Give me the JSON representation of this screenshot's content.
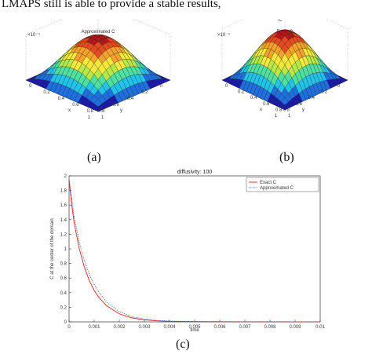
{
  "document": {
    "top_line": "LMAPS still is able to provide a stable results,"
  },
  "panels": {
    "a": {
      "label": "(a)",
      "title": "Approximated C"
    },
    "b": {
      "label": "(b)",
      "title": "Exact C"
    },
    "c": {
      "label": "(c)"
    }
  },
  "surface": {
    "zscale": "×10⁻⁴",
    "axis_ticks_x": [
      "0",
      "0.2",
      "0.4",
      "0.6",
      "0.8",
      "1"
    ],
    "axis_ticks_y": [
      "0",
      "0.2",
      "0.4",
      "0.6",
      "0.8",
      "1"
    ],
    "axis_x": "x",
    "axis_y": "y",
    "axis_z": "C",
    "colors": [
      "#1a1aa8",
      "#1e6fe0",
      "#22c3e8",
      "#4fe0a0",
      "#b7e847",
      "#f5e83a",
      "#f6a12b",
      "#e84a1f",
      "#b5161a"
    ]
  },
  "chart_data": {
    "type": "line",
    "title": "diffusivity: 100",
    "xlabel": "time",
    "ylabel": "C at the center of the domain",
    "xlim": [
      0,
      0.01
    ],
    "ylim": [
      0,
      2
    ],
    "x_ticks": [
      "0",
      "0.001",
      "0.002",
      "0.003",
      "0.004",
      "0.005",
      "0.006",
      "0.007",
      "0.008",
      "0.009",
      "0.01"
    ],
    "y_ticks": [
      "0",
      "0.2",
      "0.4",
      "0.6",
      "0.8",
      "1",
      "1.2",
      "1.4",
      "1.6",
      "1.8",
      "2"
    ],
    "legend_position": "top-right",
    "series": [
      {
        "name": "Exact C",
        "color": "#e02020",
        "style": "solid",
        "x": [
          0,
          0.0001,
          0.0002,
          0.0004,
          0.0006,
          0.0008,
          0.001,
          0.0012,
          0.0015,
          0.002,
          0.0025,
          0.003,
          0.0035,
          0.004,
          0.005,
          0.006,
          0.007,
          0.008,
          0.009,
          0.01
        ],
        "y": [
          1.95,
          1.62,
          1.36,
          1.01,
          0.76,
          0.57,
          0.43,
          0.33,
          0.22,
          0.11,
          0.055,
          0.028,
          0.014,
          0.007,
          0.003,
          0.002,
          0.001,
          0.001,
          0.0005,
          0.0003
        ]
      },
      {
        "name": "Approximated C",
        "color": "#2a5be8",
        "style": "dotted",
        "x": [
          0,
          0.0001,
          0.0002,
          0.0004,
          0.0006,
          0.0008,
          0.001,
          0.0012,
          0.0015,
          0.002,
          0.0025,
          0.003,
          0.0035,
          0.004,
          0.005,
          0.006,
          0.007,
          0.008,
          0.009,
          0.01
        ],
        "y": [
          1.95,
          1.7,
          1.45,
          1.1,
          0.85,
          0.66,
          0.51,
          0.4,
          0.27,
          0.14,
          0.072,
          0.038,
          0.02,
          0.011,
          0.004,
          0.002,
          0.001,
          0.001,
          0.0005,
          0.0003
        ]
      }
    ]
  }
}
